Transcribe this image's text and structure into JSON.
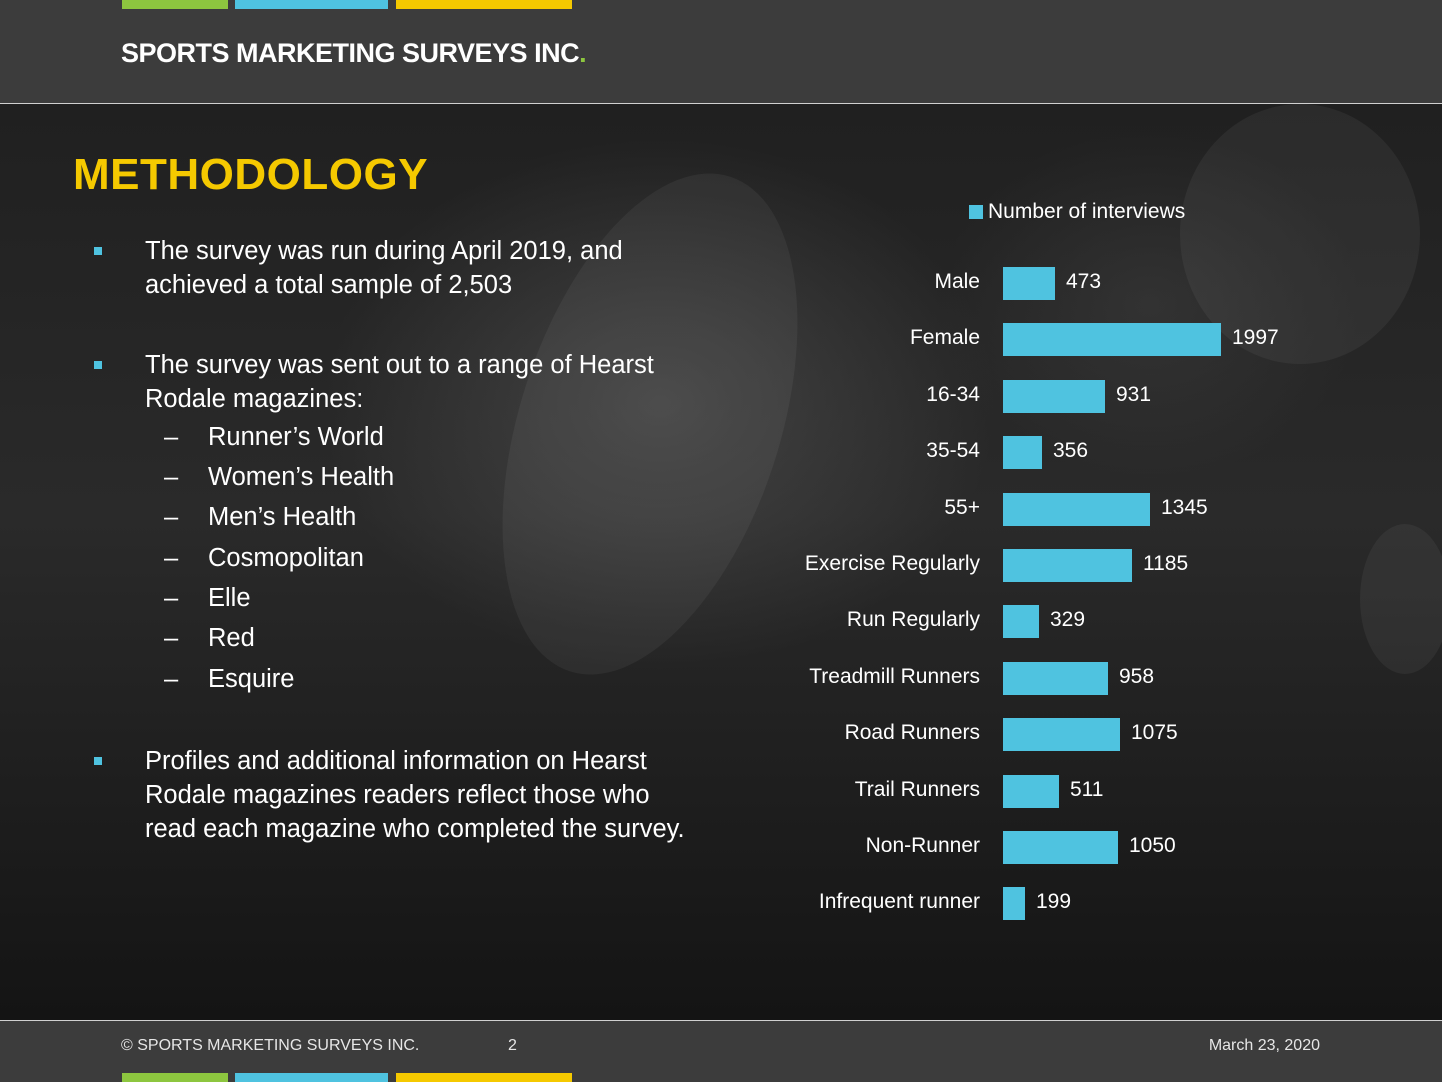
{
  "header": {
    "brand": "SPORTS MARKETING SURVEYS INC",
    "brand_dot": ".",
    "stripe_colors": [
      "#8dc63f",
      "#4fc3e0",
      "#f5c900"
    ]
  },
  "slide": {
    "title": "METHODOLOGY",
    "bullets": [
      {
        "text": "The survey was run during April 2019, and achieved a total sample of 2,503"
      },
      {
        "text": "The survey was sent out to a range of Hearst Rodale magazines:"
      },
      {
        "text": "Profiles and additional information on Hearst Rodale magazines readers reflect those who read each magazine who completed the survey."
      }
    ],
    "dash": "–",
    "magazines": [
      "Runner’s World",
      "Women’s Health",
      "Men’s Health",
      "Cosmopolitan",
      "Elle",
      "Red",
      "Esquire"
    ]
  },
  "chart_data": {
    "type": "bar",
    "orientation": "horizontal",
    "legend": "Number of interviews",
    "legend_position": "top",
    "bar_color": "#4fc3e0",
    "categories": [
      "Male",
      "Female",
      "16-34",
      "35-54",
      "55+",
      "Exercise Regularly",
      "Run Regularly",
      "Treadmill Runners",
      "Road Runners",
      "Trail Runners",
      "Non-Runner",
      "Infrequent runner"
    ],
    "series": [
      {
        "name": "Number of interviews",
        "values": [
          473,
          1997,
          931,
          356,
          1345,
          1185,
          329,
          958,
          1075,
          511,
          1050,
          199
        ]
      }
    ]
  },
  "footer": {
    "copyright": "© SPORTS MARKETING SURVEYS INC.",
    "page_number": "2",
    "date": "March 23, 2020"
  }
}
